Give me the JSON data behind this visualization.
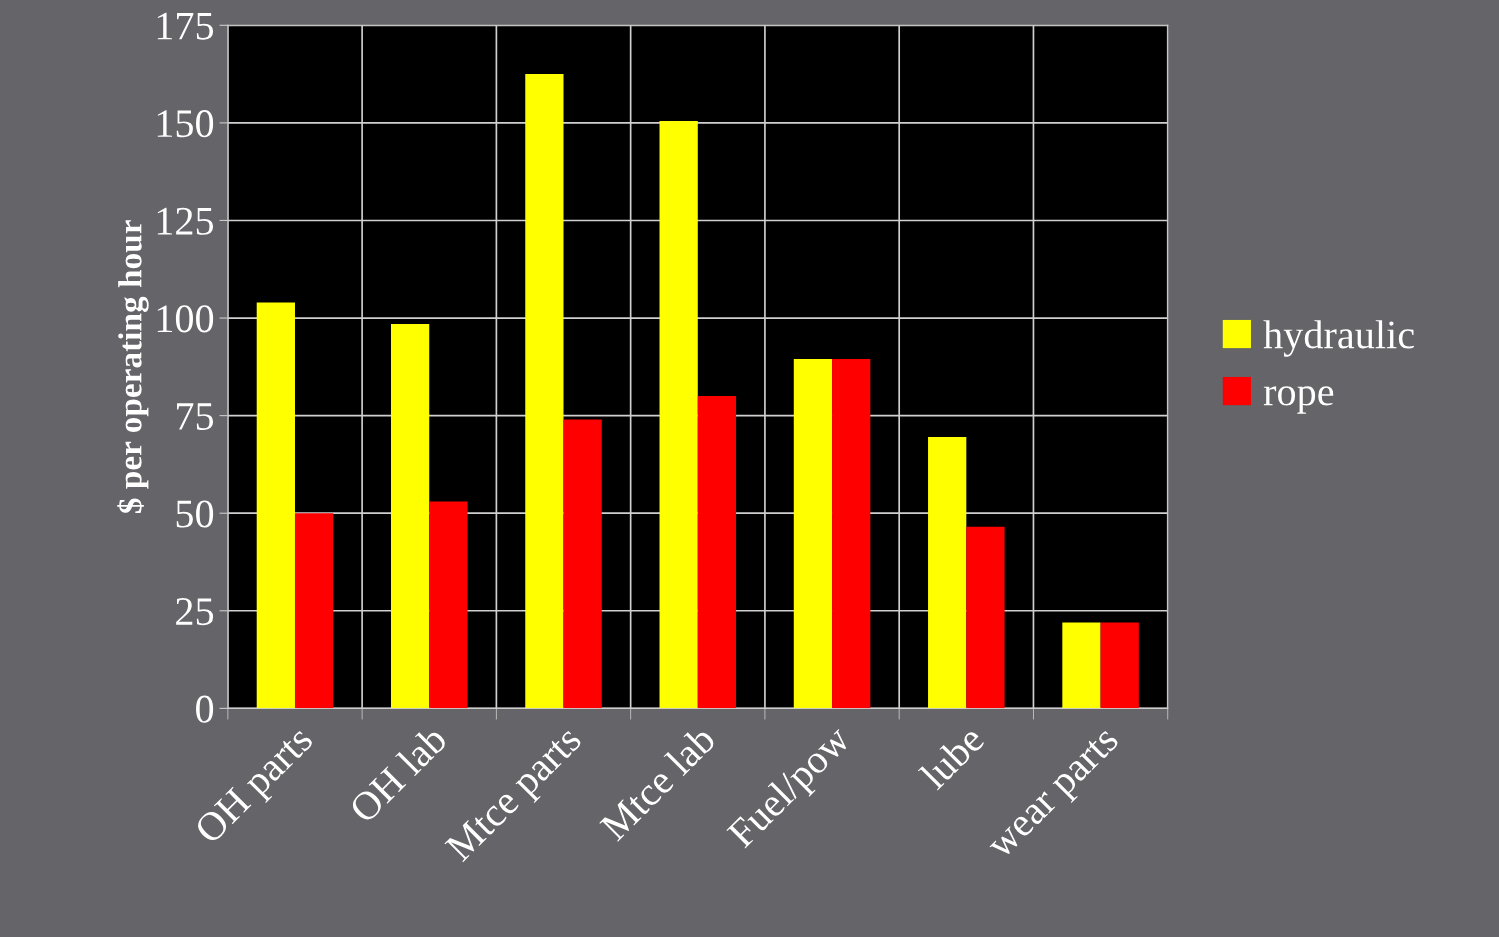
{
  "chart_data": {
    "type": "bar",
    "ylabel": "$ per operating hour",
    "categories": [
      "OH parts",
      "OH lab",
      "Mtce parts",
      "Mtce lab",
      "Fuel/pow",
      "lube",
      "wear parts"
    ],
    "series": [
      {
        "name": "hydraulic",
        "color": "#ffff00",
        "values": [
          104,
          98.5,
          162.5,
          150.5,
          89.5,
          69.5,
          22
        ]
      },
      {
        "name": "rope",
        "color": "#ff0000",
        "values": [
          50,
          53,
          74,
          80,
          89.5,
          46.5,
          22
        ]
      }
    ],
    "ylim": [
      0,
      175
    ],
    "yticks": [
      0,
      25,
      50,
      75,
      100,
      125,
      150,
      175
    ],
    "grid": true,
    "legend": "right"
  }
}
